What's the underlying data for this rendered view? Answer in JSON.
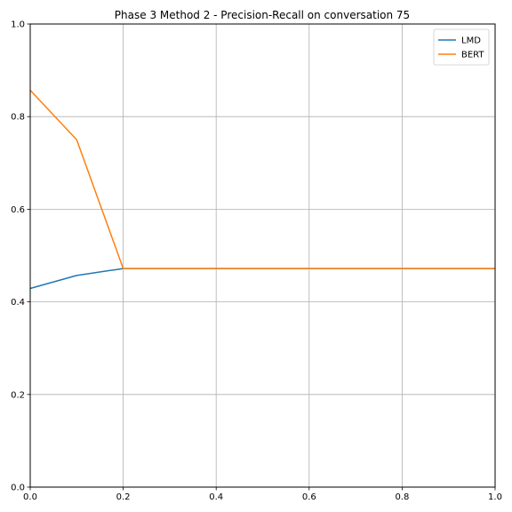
{
  "chart_data": {
    "type": "line",
    "title": "Phase 3 Method 2 - Precision-Recall on conversation 75",
    "xlabel": "",
    "ylabel": "",
    "xlim": [
      0,
      1
    ],
    "ylim": [
      0,
      1
    ],
    "xticks": [
      "0.0",
      "0.2",
      "0.4",
      "0.6",
      "0.8",
      "1.0"
    ],
    "yticks": [
      "0.0",
      "0.2",
      "0.4",
      "0.6",
      "0.8",
      "1.0"
    ],
    "grid": true,
    "legend_position": "top-right",
    "series": [
      {
        "name": "LMD",
        "color": "#1f77b4",
        "x": [
          0.0,
          0.1,
          0.2,
          0.3,
          0.4,
          0.5,
          0.6,
          0.7,
          0.8,
          0.9,
          1.0
        ],
        "y": [
          0.429,
          0.457,
          0.472,
          0.472,
          0.472,
          0.472,
          0.472,
          0.472,
          0.472,
          0.472,
          0.472
        ]
      },
      {
        "name": "BERT",
        "color": "#ff7f0e",
        "x": [
          0.0,
          0.1,
          0.2,
          0.3,
          0.4,
          0.5,
          0.6,
          0.7,
          0.8,
          0.9,
          1.0
        ],
        "y": [
          0.857,
          0.75,
          0.472,
          0.472,
          0.472,
          0.472,
          0.472,
          0.472,
          0.472,
          0.472,
          0.472
        ]
      }
    ]
  }
}
